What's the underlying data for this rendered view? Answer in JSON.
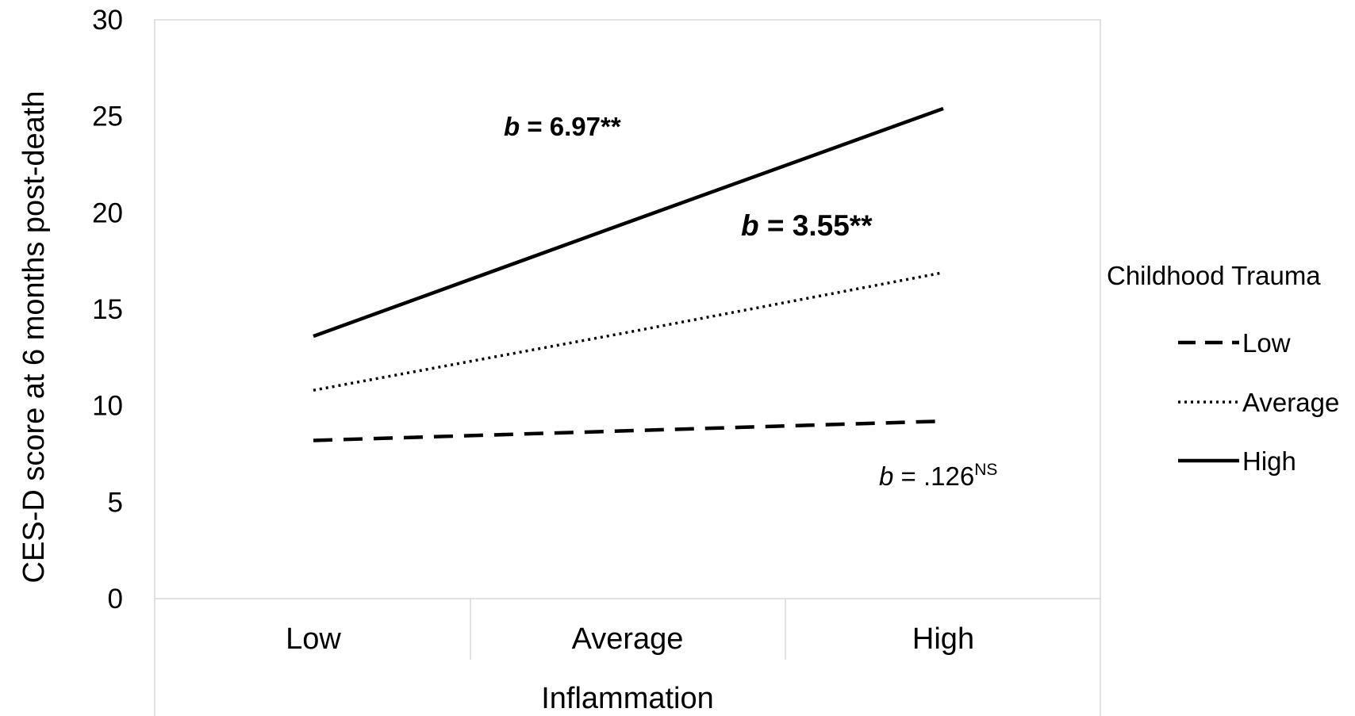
{
  "chart_data": {
    "type": "line",
    "categories": [
      "Low",
      "Average",
      "High"
    ],
    "xlabel": "Inflammation",
    "ylabel": "CES-D score at 6 months post-death",
    "ylim": [
      0,
      30
    ],
    "yticks": [
      0,
      5,
      10,
      15,
      20,
      25,
      30
    ],
    "grid": false,
    "legend": {
      "title": "Childhood Trauma",
      "placement": "right"
    },
    "series": [
      {
        "name": "Low",
        "style": "dashed",
        "values": [
          8.2,
          8.7,
          9.2
        ]
      },
      {
        "name": "Average",
        "style": "dotted",
        "values": [
          10.8,
          13.8,
          16.9
        ]
      },
      {
        "name": "High",
        "style": "solid",
        "values": [
          13.6,
          19.5,
          25.4
        ]
      }
    ],
    "annotations": {
      "high": {
        "b": "b",
        "rest": " = 6.97**"
      },
      "average": {
        "b": "b",
        "rest": " = 3.55**"
      },
      "low": {
        "b": "b",
        "rest": " = .126",
        "sup": "NS"
      }
    },
    "colors": {
      "line": "#000000",
      "frame": "#d9d9d9"
    }
  }
}
